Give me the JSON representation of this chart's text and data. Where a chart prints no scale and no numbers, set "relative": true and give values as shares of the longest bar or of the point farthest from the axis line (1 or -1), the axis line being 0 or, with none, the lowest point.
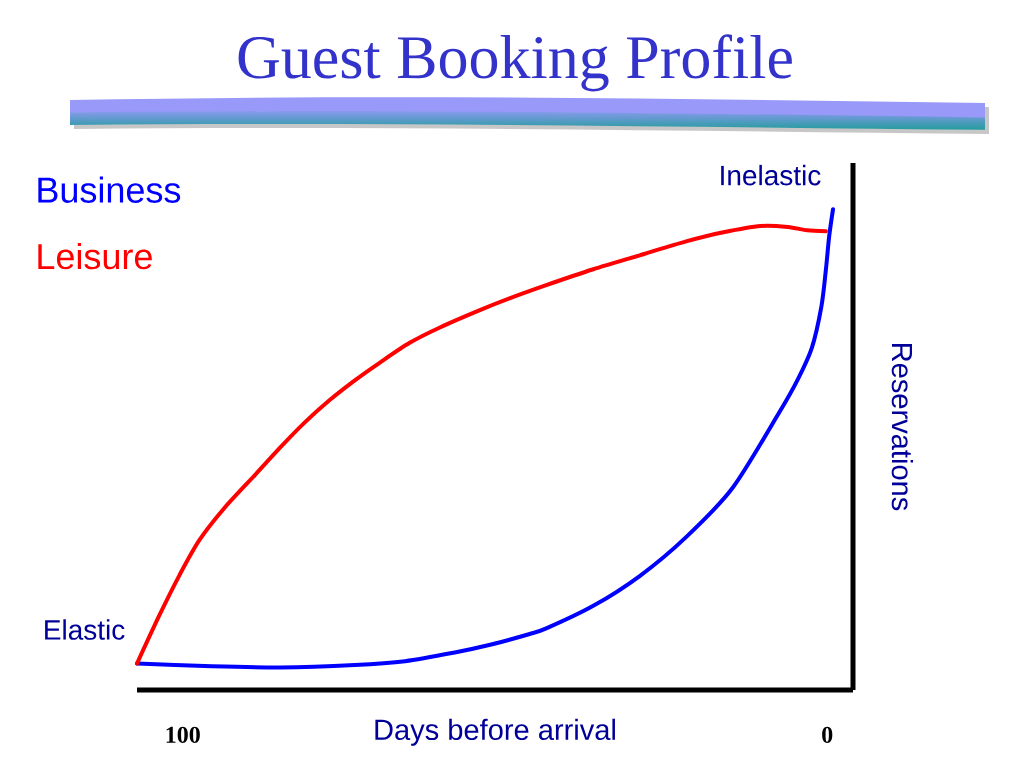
{
  "chart_data": {
    "type": "line",
    "title": "Guest Booking Profile",
    "xlabel": "Days before arrival",
    "ylabel": "Reservations",
    "relative": true,
    "xlim": [
      107.1,
      -4
    ],
    "xticks": [
      100,
      0
    ],
    "legend": "top left",
    "series": [
      {
        "name": "Business",
        "color": "#0000ff",
        "x": [
          107.1,
          96.6,
          84.9,
          73.3,
          65.5,
          57.8,
          52.3,
          46.3,
          43.6,
          36.3,
          29.1,
          21.9,
          14.7,
          7.5,
          4.6,
          2.4,
          0.9,
          0.2,
          -0.3,
          -0.9
        ],
        "values": [
          0.055,
          0.05,
          0.047,
          0.052,
          0.06,
          0.078,
          0.094,
          0.116,
          0.128,
          0.175,
          0.237,
          0.318,
          0.42,
          0.576,
          0.645,
          0.711,
          0.798,
          0.875,
          0.943,
          1
        ]
      },
      {
        "name": "Leisure",
        "color": "#ff0000",
        "x": [
          107.1,
          103.6,
          100.5,
          97.4,
          93.5,
          88.8,
          84.9,
          81.1,
          77.2,
          73.3,
          69.4,
          64.8,
          60.1,
          53.9,
          49.2,
          43.6,
          36.3,
          29.1,
          21.9,
          16.1,
          10.3,
          6.1,
          3.1,
          0.2
        ],
        "values": [
          0.055,
          0.156,
          0.239,
          0.312,
          0.379,
          0.447,
          0.504,
          0.556,
          0.603,
          0.644,
          0.681,
          0.722,
          0.754,
          0.79,
          0.815,
          0.842,
          0.875,
          0.904,
          0.933,
          0.952,
          0.965,
          0.963,
          0.956,
          0.954
        ]
      }
    ],
    "annotations": [
      {
        "text": "Elastic",
        "x": 107.1,
        "y": 0.055
      },
      {
        "text": "Inelastic",
        "x": -0.9,
        "y": 1
      }
    ]
  }
}
